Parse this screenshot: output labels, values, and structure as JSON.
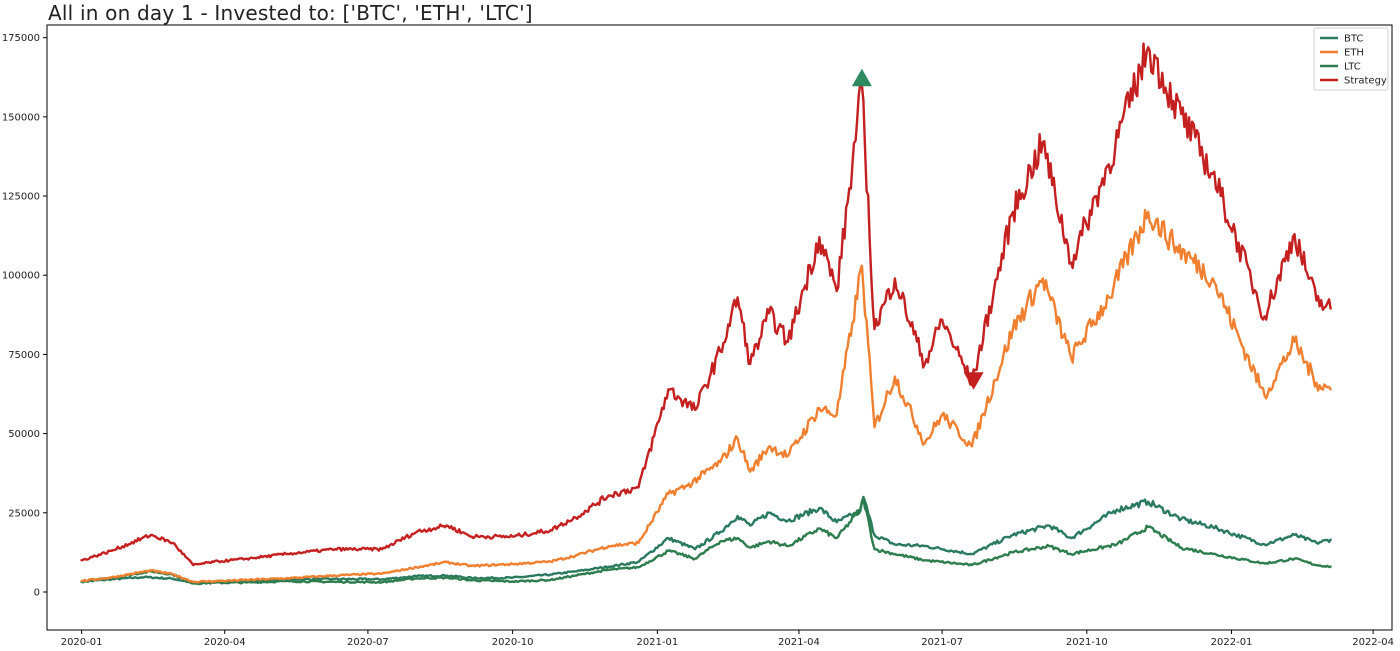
{
  "chart_data": {
    "type": "line",
    "title": "All in on day 1 - Invested to: ['BTC', 'ETH', 'LTC']",
    "xlabel": "",
    "ylabel": "",
    "x_range": [
      "2019-12-10",
      "2022-04-13"
    ],
    "ylim": [
      -12000,
      179000
    ],
    "x_ticks": [
      "2020-01",
      "2020-04",
      "2020-07",
      "2020-10",
      "2021-01",
      "2021-04",
      "2021-07",
      "2021-10",
      "2022-01",
      "2022-04"
    ],
    "y_ticks": [
      0,
      25000,
      50000,
      75000,
      100000,
      125000,
      150000,
      175000
    ],
    "grid": false,
    "legend_position": "top-right",
    "series": [
      {
        "name": "BTC",
        "color": "#2a7a5e",
        "points": [
          [
            "2020-01-01",
            3300
          ],
          [
            "2020-01-20",
            4000
          ],
          [
            "2020-02-10",
            4700
          ],
          [
            "2020-02-28",
            4200
          ],
          [
            "2020-03-12",
            2900
          ],
          [
            "2020-03-25",
            3300
          ],
          [
            "2020-04-15",
            3500
          ],
          [
            "2020-05-10",
            4000
          ],
          [
            "2020-06-10",
            4100
          ],
          [
            "2020-07-10",
            4000
          ],
          [
            "2020-08-01",
            5000
          ],
          [
            "2020-08-20",
            5200
          ],
          [
            "2020-09-05",
            4400
          ],
          [
            "2020-10-01",
            4500
          ],
          [
            "2020-10-25",
            5500
          ],
          [
            "2020-11-10",
            6500
          ],
          [
            "2020-12-01",
            8000
          ],
          [
            "2020-12-20",
            9500
          ],
          [
            "2021-01-08",
            17000
          ],
          [
            "2021-01-25",
            13500
          ],
          [
            "2021-02-10",
            19000
          ],
          [
            "2021-02-21",
            24000
          ],
          [
            "2021-03-01",
            21000
          ],
          [
            "2021-03-13",
            25000
          ],
          [
            "2021-03-25",
            22500
          ],
          [
            "2021-04-14",
            26500
          ],
          [
            "2021-04-25",
            22000
          ],
          [
            "2021-05-10",
            25500
          ],
          [
            "2021-05-12",
            30000
          ],
          [
            "2021-05-19",
            18000
          ],
          [
            "2021-06-01",
            15000
          ],
          [
            "2021-06-20",
            14500
          ],
          [
            "2021-07-20",
            12000
          ],
          [
            "2021-08-15",
            18000
          ],
          [
            "2021-09-07",
            21000
          ],
          [
            "2021-09-21",
            17000
          ],
          [
            "2021-10-20",
            26000
          ],
          [
            "2021-11-09",
            28500
          ],
          [
            "2021-11-30",
            23000
          ],
          [
            "2021-12-20",
            20500
          ],
          [
            "2022-01-22",
            15000
          ],
          [
            "2022-02-10",
            18000
          ],
          [
            "2022-02-24",
            15500
          ],
          [
            "2022-03-05",
            16500
          ]
        ]
      },
      {
        "name": "ETH",
        "color": "#f0802f",
        "points": [
          [
            "2020-01-01",
            3500
          ],
          [
            "2020-01-20",
            4600
          ],
          [
            "2020-02-14",
            6800
          ],
          [
            "2020-02-28",
            5600
          ],
          [
            "2020-03-12",
            3200
          ],
          [
            "2020-03-25",
            3400
          ],
          [
            "2020-04-15",
            3800
          ],
          [
            "2020-05-10",
            4300
          ],
          [
            "2020-06-10",
            5200
          ],
          [
            "2020-07-10",
            5800
          ],
          [
            "2020-08-01",
            7800
          ],
          [
            "2020-08-20",
            9400
          ],
          [
            "2020-09-05",
            8200
          ],
          [
            "2020-10-01",
            8800
          ],
          [
            "2020-10-25",
            9600
          ],
          [
            "2020-11-10",
            11500
          ],
          [
            "2020-12-01",
            14500
          ],
          [
            "2020-12-20",
            15500
          ],
          [
            "2021-01-08",
            31000
          ],
          [
            "2021-01-20",
            33500
          ],
          [
            "2021-02-10",
            41000
          ],
          [
            "2021-02-21",
            48500
          ],
          [
            "2021-03-01",
            38000
          ],
          [
            "2021-03-13",
            46000
          ],
          [
            "2021-03-25",
            43000
          ],
          [
            "2021-04-14",
            58000
          ],
          [
            "2021-04-25",
            56000
          ],
          [
            "2021-05-05",
            85000
          ],
          [
            "2021-05-11",
            103000
          ],
          [
            "2021-05-19",
            52000
          ],
          [
            "2021-06-01",
            68000
          ],
          [
            "2021-06-20",
            47000
          ],
          [
            "2021-07-01",
            56000
          ],
          [
            "2021-07-20",
            46000
          ],
          [
            "2021-08-15",
            83000
          ],
          [
            "2021-09-03",
            99000
          ],
          [
            "2021-09-21",
            74000
          ],
          [
            "2021-10-15",
            93000
          ],
          [
            "2021-11-09",
            120000
          ],
          [
            "2021-11-25",
            110000
          ],
          [
            "2021-12-20",
            99000
          ],
          [
            "2022-01-22",
            62000
          ],
          [
            "2022-02-10",
            79000
          ],
          [
            "2022-02-24",
            66000
          ],
          [
            "2022-03-05",
            64000
          ]
        ]
      },
      {
        "name": "LTC",
        "color": "#2e7d4f",
        "points": [
          [
            "2020-01-01",
            3200
          ],
          [
            "2020-01-20",
            4500
          ],
          [
            "2020-02-14",
            6500
          ],
          [
            "2020-02-28",
            5500
          ],
          [
            "2020-03-12",
            2700
          ],
          [
            "2020-03-25",
            2900
          ],
          [
            "2020-04-15",
            3000
          ],
          [
            "2020-05-10",
            3400
          ],
          [
            "2020-06-10",
            3200
          ],
          [
            "2020-07-10",
            3100
          ],
          [
            "2020-08-01",
            4300
          ],
          [
            "2020-08-20",
            4500
          ],
          [
            "2020-09-05",
            3700
          ],
          [
            "2020-10-01",
            3300
          ],
          [
            "2020-10-25",
            3800
          ],
          [
            "2020-11-10",
            5200
          ],
          [
            "2020-12-01",
            7000
          ],
          [
            "2020-12-20",
            7800
          ],
          [
            "2021-01-08",
            13000
          ],
          [
            "2021-01-25",
            10500
          ],
          [
            "2021-02-10",
            16000
          ],
          [
            "2021-02-21",
            17000
          ],
          [
            "2021-03-01",
            14000
          ],
          [
            "2021-03-13",
            16000
          ],
          [
            "2021-03-25",
            14500
          ],
          [
            "2021-04-14",
            20000
          ],
          [
            "2021-04-25",
            17000
          ],
          [
            "2021-05-10",
            26000
          ],
          [
            "2021-05-12",
            29500
          ],
          [
            "2021-05-19",
            13500
          ],
          [
            "2021-06-01",
            12000
          ],
          [
            "2021-06-20",
            10000
          ],
          [
            "2021-07-20",
            8500
          ],
          [
            "2021-08-15",
            12500
          ],
          [
            "2021-09-07",
            14500
          ],
          [
            "2021-09-21",
            12000
          ],
          [
            "2021-10-20",
            15000
          ],
          [
            "2021-11-09",
            20500
          ],
          [
            "2021-11-30",
            14000
          ],
          [
            "2021-12-20",
            12000
          ],
          [
            "2022-01-22",
            9000
          ],
          [
            "2022-02-10",
            10500
          ],
          [
            "2022-02-24",
            8500
          ],
          [
            "2022-03-05",
            8000
          ]
        ]
      },
      {
        "name": "Strategy",
        "color": "#c42020",
        "points": [
          [
            "2020-01-01",
            10000
          ],
          [
            "2020-01-20",
            13000
          ],
          [
            "2020-02-14",
            18000
          ],
          [
            "2020-02-28",
            15500
          ],
          [
            "2020-03-12",
            8500
          ],
          [
            "2020-03-25",
            9500
          ],
          [
            "2020-04-15",
            10500
          ],
          [
            "2020-05-10",
            12000
          ],
          [
            "2020-06-10",
            13500
          ],
          [
            "2020-07-10",
            13500
          ],
          [
            "2020-08-01",
            19000
          ],
          [
            "2020-08-20",
            21000
          ],
          [
            "2020-09-05",
            17500
          ],
          [
            "2020-10-01",
            17500
          ],
          [
            "2020-10-25",
            19500
          ],
          [
            "2020-11-10",
            23500
          ],
          [
            "2020-12-01",
            30500
          ],
          [
            "2020-12-20",
            33000
          ],
          [
            "2021-01-08",
            64000
          ],
          [
            "2021-01-25",
            57500
          ],
          [
            "2021-02-10",
            76000
          ],
          [
            "2021-02-21",
            93000
          ],
          [
            "2021-03-01",
            72000
          ],
          [
            "2021-03-13",
            88000
          ],
          [
            "2021-03-25",
            79000
          ],
          [
            "2021-04-14",
            112000
          ],
          [
            "2021-04-25",
            95000
          ],
          [
            "2021-05-05",
            135000
          ],
          [
            "2021-05-11",
            160000
          ],
          [
            "2021-05-19",
            83000
          ],
          [
            "2021-06-01",
            99000
          ],
          [
            "2021-06-20",
            72000
          ],
          [
            "2021-07-01",
            86000
          ],
          [
            "2021-07-20",
            66000
          ],
          [
            "2021-08-15",
            120000
          ],
          [
            "2021-09-03",
            142000
          ],
          [
            "2021-09-21",
            104000
          ],
          [
            "2021-10-15",
            135000
          ],
          [
            "2021-11-09",
            172000
          ],
          [
            "2021-11-25",
            155000
          ],
          [
            "2021-12-20",
            132000
          ],
          [
            "2022-01-22",
            87000
          ],
          [
            "2022-02-10",
            113000
          ],
          [
            "2022-02-24",
            92000
          ],
          [
            "2022-03-05",
            89500
          ]
        ]
      }
    ],
    "markers": [
      {
        "date": "2021-05-11",
        "value": 162000,
        "type": "triangle-up",
        "color": "#2e8a5f"
      },
      {
        "date": "2021-07-21",
        "value": 67000,
        "type": "triangle-down",
        "color": "#c42020"
      }
    ]
  }
}
